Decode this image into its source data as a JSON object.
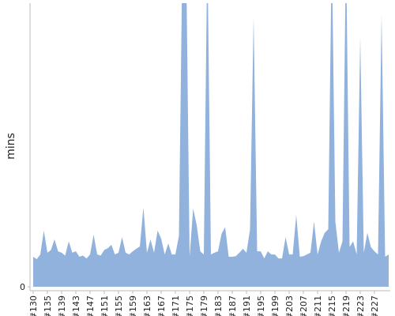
{
  "chart_data": {
    "type": "area",
    "y_label": "mins",
    "color": "#90b2dd",
    "categories": [
      "#130",
      null,
      null,
      null,
      "#135",
      null,
      null,
      null,
      "#139",
      null,
      null,
      null,
      "#143",
      null,
      null,
      null,
      "#147",
      null,
      null,
      null,
      "#151",
      null,
      null,
      null,
      "#155",
      null,
      null,
      null,
      "#159",
      null,
      null,
      null,
      "#163",
      null,
      null,
      null,
      "#167",
      null,
      null,
      null,
      "#171",
      null,
      null,
      null,
      "#175",
      null,
      null,
      null,
      "#179",
      null,
      null,
      null,
      "#183",
      null,
      null,
      null,
      "#187",
      null,
      null,
      null,
      "#191",
      null,
      null,
      null,
      "#195",
      null,
      null,
      null,
      "#199",
      null,
      null,
      null,
      "#203",
      null,
      null,
      null,
      "#207",
      null,
      null,
      null,
      "#211",
      null,
      null,
      null,
      "#215",
      null,
      null,
      null,
      "#219",
      null,
      null,
      null,
      "#223",
      null,
      null,
      null,
      "#227",
      null,
      null,
      null,
      null
    ],
    "values": [
      10.6,
      9.7,
      11.4,
      19.8,
      12,
      13,
      16.7,
      12.5,
      12,
      11,
      16,
      12,
      12.5,
      10.6,
      11,
      10,
      11.4,
      18.4,
      11.4,
      11,
      13,
      13.6,
      14.8,
      11.4,
      12,
      17.5,
      12,
      11.4,
      12.5,
      13.4,
      14.2,
      28,
      12,
      16.7,
      12,
      19.8,
      17,
      11.4,
      15.3,
      11.4,
      11.4,
      18,
      120,
      120,
      10.6,
      27.6,
      21.7,
      12.5,
      11.4,
      120,
      11.4,
      12,
      12.5,
      18.7,
      21,
      10.6,
      10.6,
      10.8,
      12,
      13.4,
      12,
      20.3,
      95,
      12.5,
      12.5,
      10,
      12.5,
      11.4,
      11.4,
      10,
      10,
      17.5,
      11.4,
      11.4,
      25.3,
      10.6,
      10.8,
      11.4,
      12,
      23,
      11.4,
      16,
      19,
      20.3,
      120,
      23,
      12,
      16,
      120,
      14,
      16,
      11.4,
      88,
      12,
      19,
      14,
      12.5,
      11.4,
      96,
      10.6,
      11.4
    ],
    "ylim": [
      0,
      100
    ],
    "yticks": [
      0
    ]
  }
}
